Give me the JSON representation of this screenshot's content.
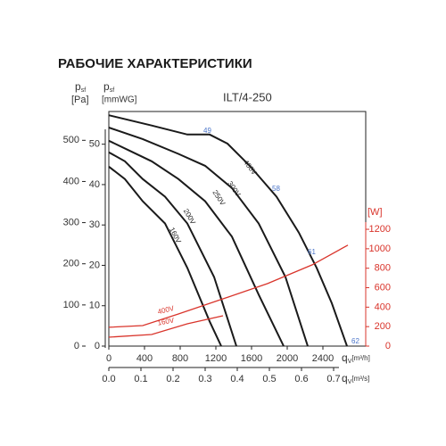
{
  "chart_data": {
    "type": "line",
    "title": "РАБОЧИЕ ХАРАКТЕРИСТИКИ",
    "subtitle": "ILT/4-250",
    "ylabel": {
      "symbol": "p",
      "sub": "sf",
      "unit": "[Pa]"
    },
    "ylabel_alt": {
      "symbol": "p",
      "sub": "sf",
      "unit": "[mmWG]"
    },
    "y2label": "[W]",
    "xlabel": {
      "symbol": "q",
      "sub": "V",
      "unit": "[m³/h]"
    },
    "xlabel_alt": {
      "symbol": "q",
      "sub": "V",
      "unit": "[m³/s]"
    },
    "xlim": [
      0,
      2880
    ],
    "xticks": [
      0,
      400,
      800,
      1200,
      1600,
      2000,
      2400
    ],
    "x_alt_lim": [
      0,
      0.8
    ],
    "x_alt_ticks": [
      {
        "value": 0,
        "label": "0.0"
      },
      0.1,
      0.2,
      0.3,
      0.4,
      0.5,
      0.6,
      0.7
    ],
    "ylim": [
      0,
      570
    ],
    "yticks": [
      0,
      100,
      200,
      300,
      400,
      500
    ],
    "y_alt_lim": [
      0,
      58.1
    ],
    "y_alt_ticks": [
      0,
      10,
      20,
      30,
      40,
      50
    ],
    "y2lim": [
      0,
      2410
    ],
    "y2ticks": [
      0,
      200,
      400,
      600,
      800,
      1000,
      1200
    ],
    "annotations": [
      "49",
      "58",
      "61",
      "62"
    ],
    "series": [
      {
        "name": "400V",
        "color": "#1a1a1a",
        "x": [
          0,
          480,
          880,
          1130,
          1330,
          1580,
          1880,
          2130,
          2330,
          2500,
          2670
        ],
        "values": [
          561,
          536,
          514,
          514,
          492,
          438,
          363,
          276,
          190,
          104,
          0
        ]
      },
      {
        "name": "300V",
        "color": "#1a1a1a",
        "x": [
          0,
          380,
          780,
          1080,
          1380,
          1680,
          1980,
          2230
        ],
        "values": [
          531,
          503,
          467,
          438,
          384,
          298,
          168,
          0
        ]
      },
      {
        "name": "250V",
        "color": "#1a1a1a",
        "x": [
          0,
          230,
          480,
          780,
          1080,
          1380,
          1680,
          1960
        ],
        "values": [
          499,
          475,
          449,
          406,
          352,
          266,
          125,
          0
        ]
      },
      {
        "name": "200V",
        "color": "#1a1a1a",
        "x": [
          0,
          180,
          380,
          630,
          880,
          1180,
          1430
        ],
        "values": [
          471,
          449,
          406,
          363,
          298,
          168,
          0
        ]
      },
      {
        "name": "160V",
        "color": "#1a1a1a",
        "x": [
          0,
          180,
          380,
          630,
          880,
          1130,
          1260
        ],
        "values": [
          436,
          406,
          352,
          298,
          190,
          60,
          0
        ]
      },
      {
        "name": "400V",
        "color": "#d9342b",
        "axis": "y2",
        "x": [
          0,
          380,
          780,
          1280,
          1780,
          2280,
          2680
        ],
        "values": [
          193,
          211,
          330,
          486,
          642,
          835,
          1037
        ]
      },
      {
        "name": "160V",
        "color": "#d9342b",
        "axis": "y2",
        "x": [
          0,
          480,
          880,
          1280
        ],
        "values": [
          92,
          119,
          229,
          312
        ]
      }
    ]
  }
}
